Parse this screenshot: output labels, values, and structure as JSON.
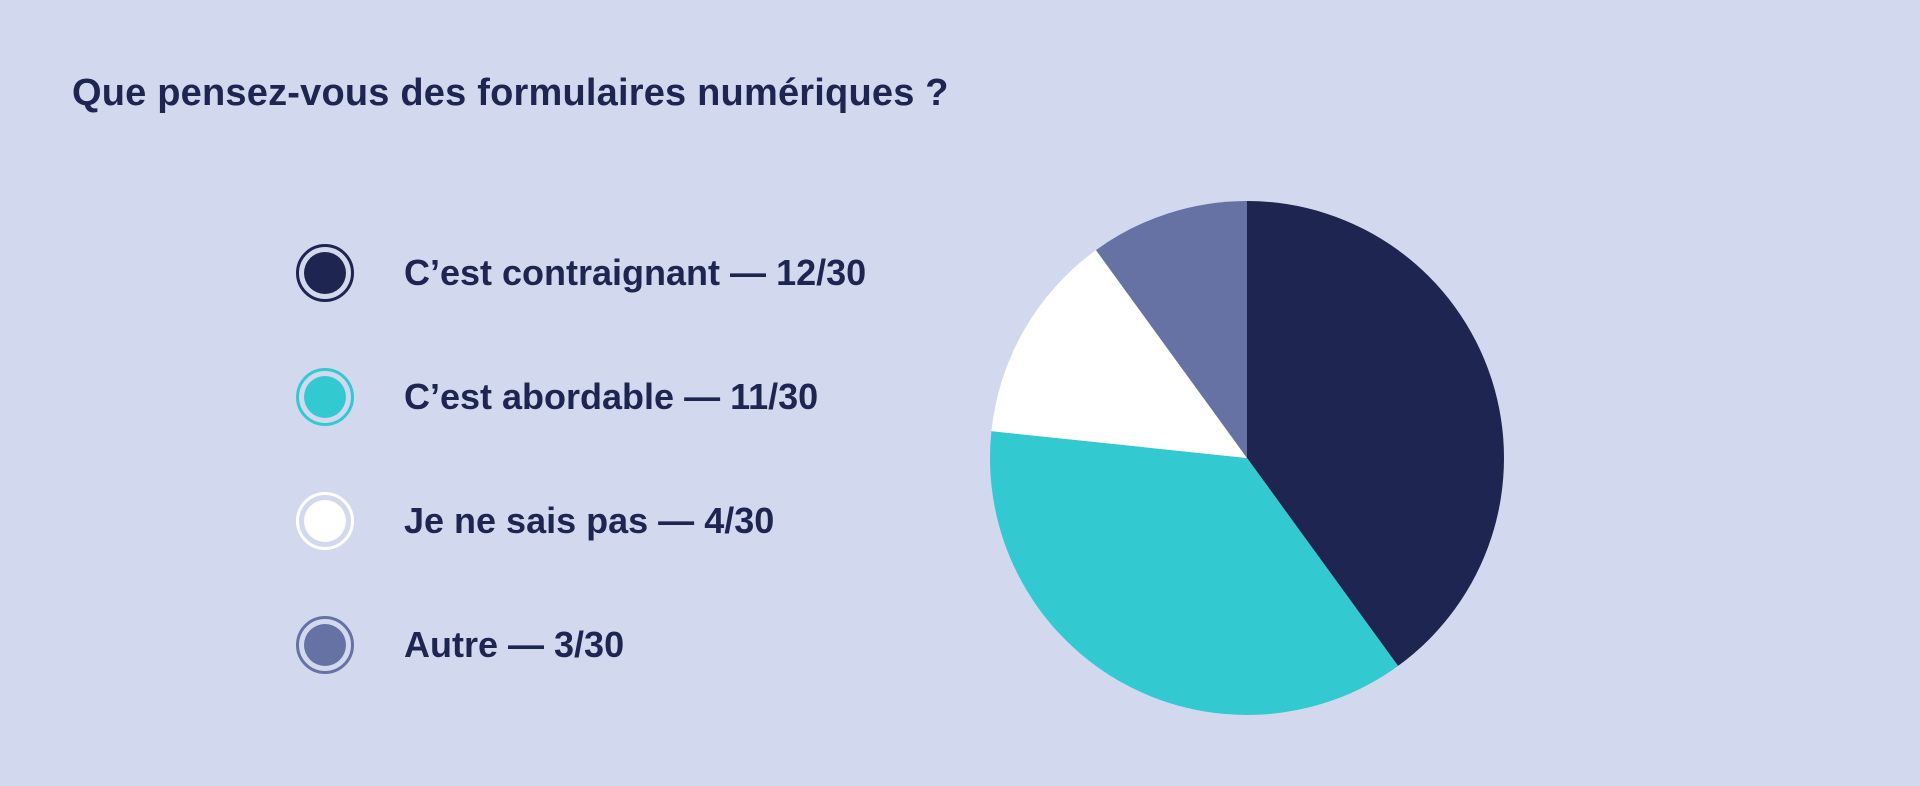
{
  "title": "Que pensez-vous des formulaires numériques ?",
  "chart_data": {
    "type": "pie",
    "total": 30,
    "categories": [
      "C’est contraignant",
      "C’est abordable",
      "Je ne sais pas",
      "Autre"
    ],
    "values": [
      12,
      11,
      4,
      3
    ],
    "value_labels": [
      "12/30",
      "11/30",
      "4/30",
      "3/30"
    ],
    "colors": [
      "#1D2550",
      "#33C9D1",
      "#FFFFFF",
      "#6672A4"
    ],
    "legend_position": "left",
    "separator": " — "
  }
}
